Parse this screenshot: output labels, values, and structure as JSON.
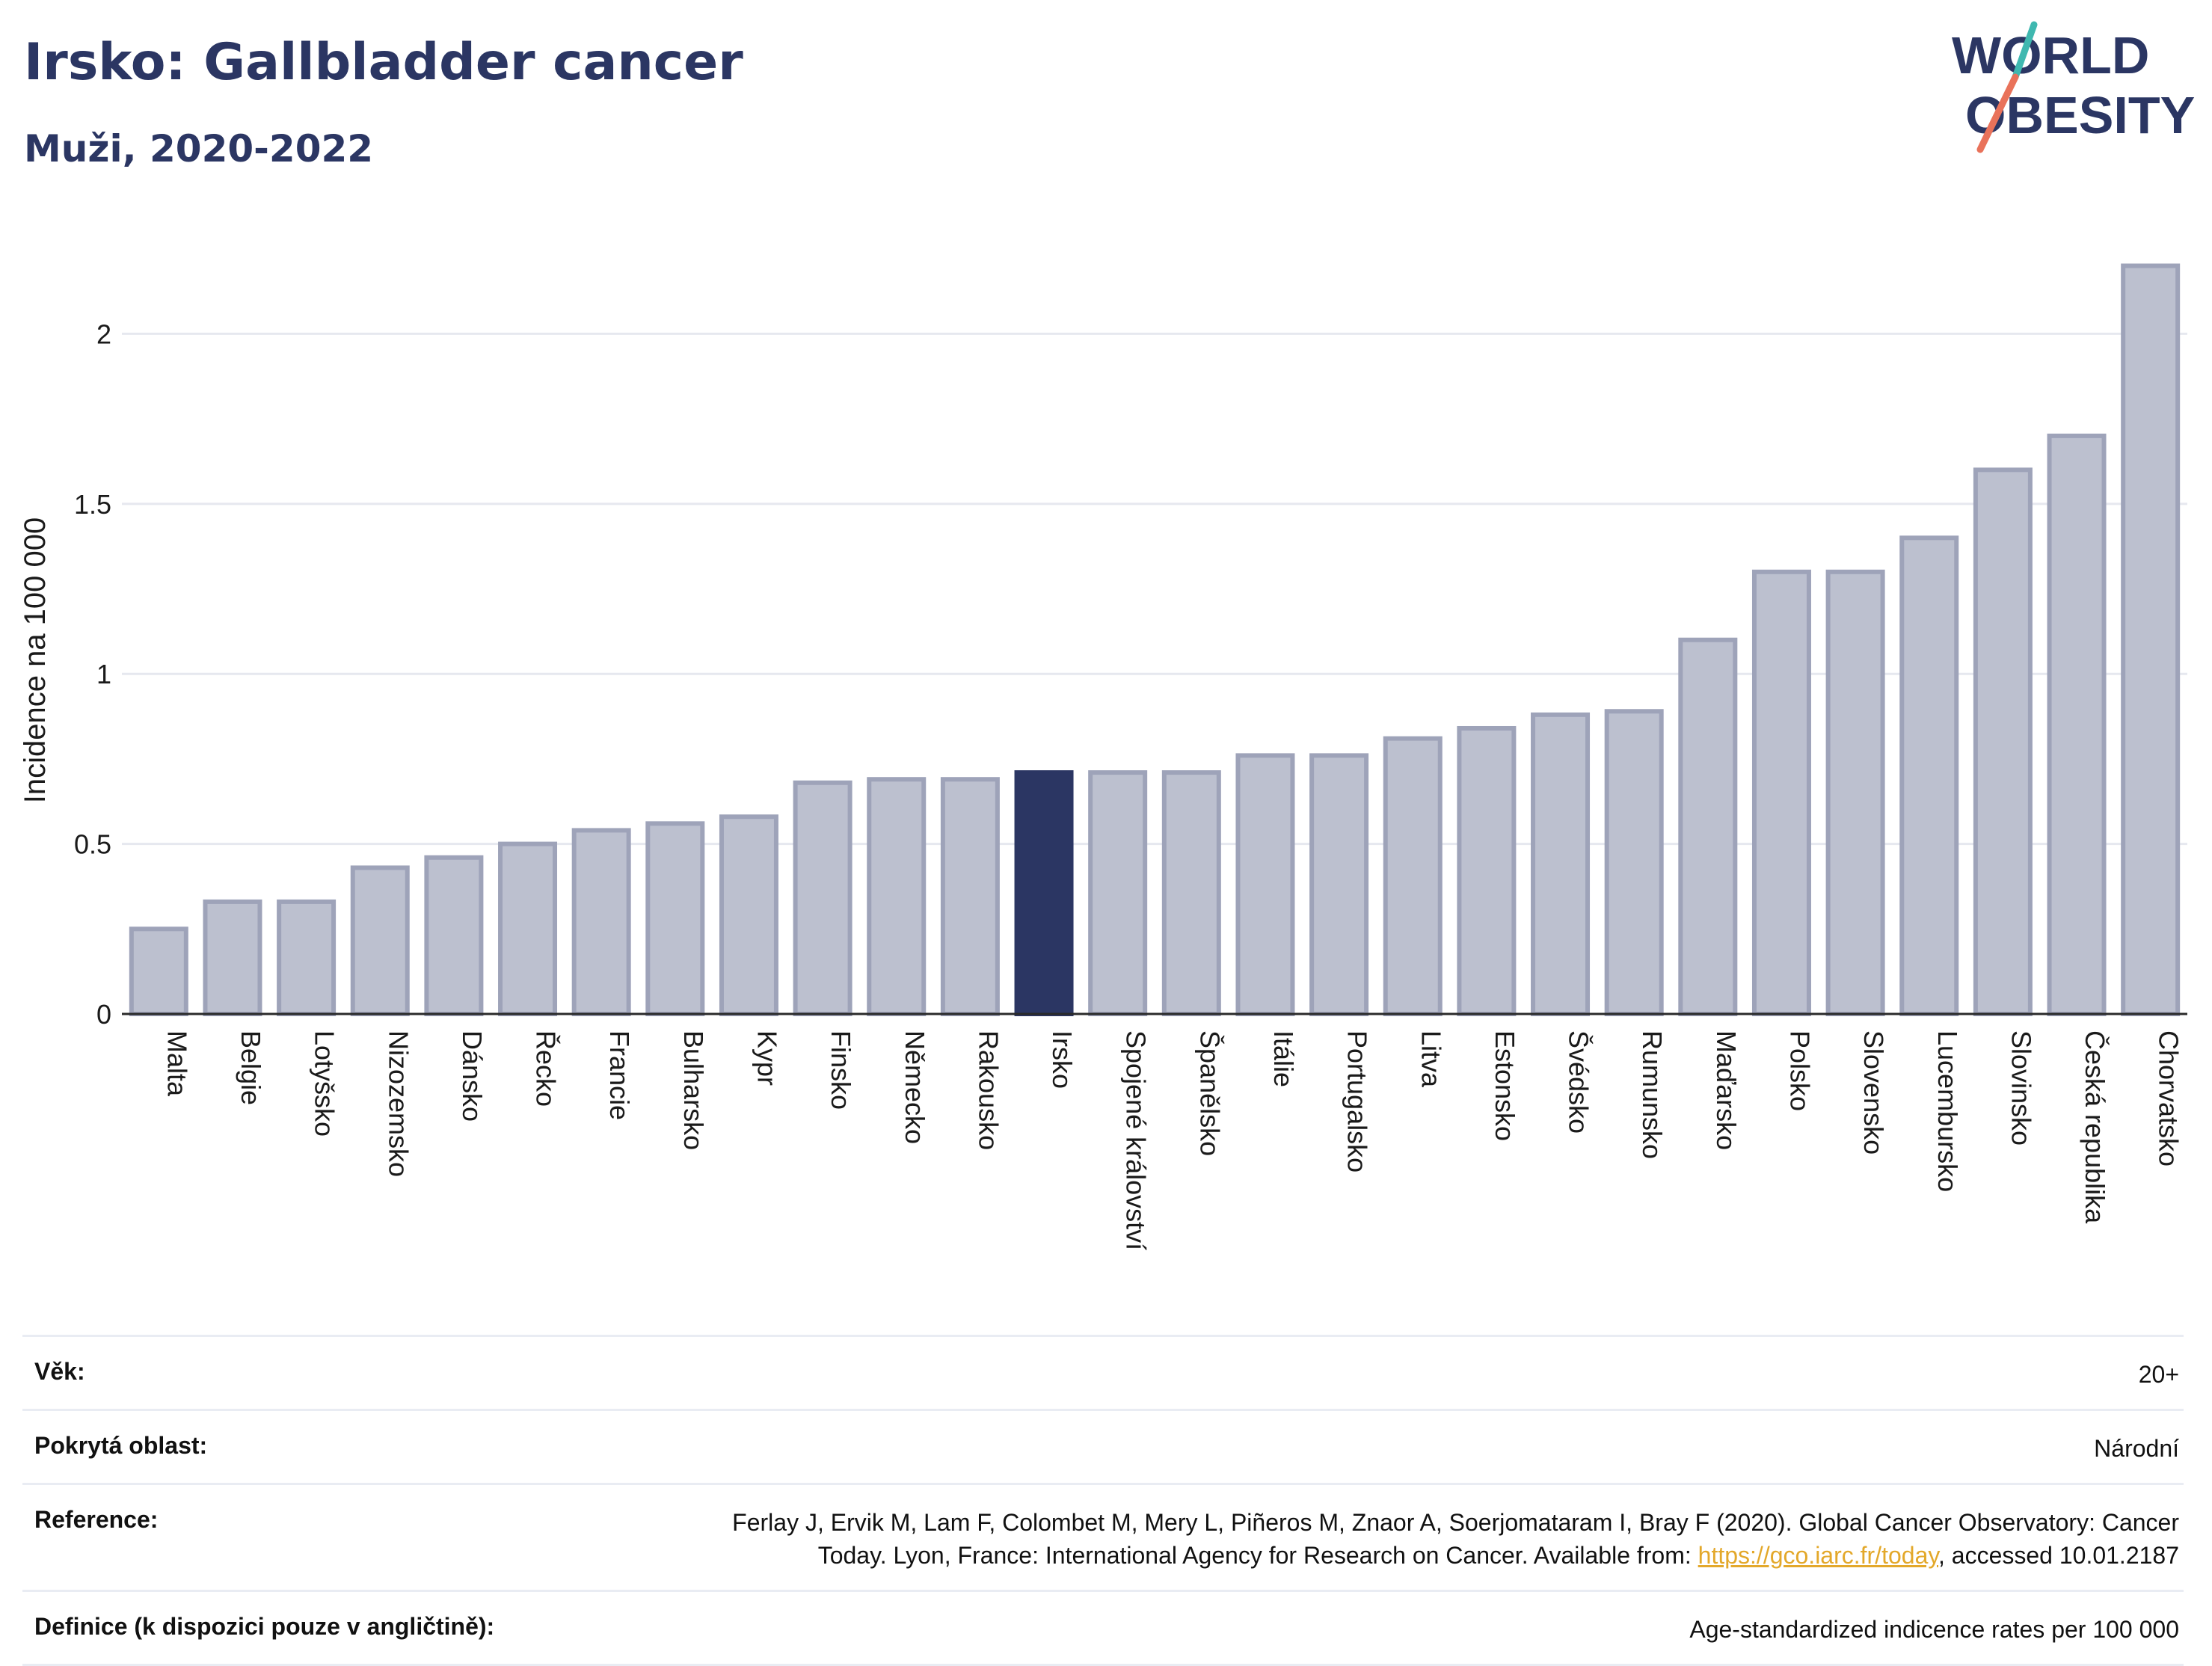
{
  "header": {
    "title": "Irsko: Gallbladder cancer",
    "subtitle": "Muži, 2020-2022"
  },
  "logo": {
    "line1": "WORLD",
    "line2": "OBESITY"
  },
  "chart_data": {
    "type": "bar",
    "ylabel": "Incidence na 100 000",
    "ylim": [
      0,
      2.3
    ],
    "yticks": [
      0,
      0.5,
      1,
      1.5,
      2
    ],
    "ytick_labels": [
      "0",
      "0.5",
      "1",
      "1.5",
      "2"
    ],
    "grid": true,
    "highlight": "Irsko",
    "colors": {
      "default": "#bcc0cf",
      "default_edge": "#9ea3b9",
      "highlight": "#2b3663"
    },
    "categories": [
      "Malta",
      "Belgie",
      "Lotyšsko",
      "Nizozemsko",
      "Dánsko",
      "Řecko",
      "Francie",
      "Bulharsko",
      "Kypr",
      "Finsko",
      "Německo",
      "Rakousko",
      "Irsko",
      "Spojené království",
      "Španělsko",
      "Itálie",
      "Portugalsko",
      "Litva",
      "Estonsko",
      "Švédsko",
      "Rumunsko",
      "Maďarsko",
      "Polsko",
      "Slovensko",
      "Lucembursko",
      "Slovinsko",
      "Česká republika",
      "Chorvatsko"
    ],
    "values": [
      0.25,
      0.33,
      0.33,
      0.43,
      0.46,
      0.5,
      0.54,
      0.56,
      0.58,
      0.68,
      0.69,
      0.69,
      0.71,
      0.71,
      0.71,
      0.76,
      0.76,
      0.81,
      0.84,
      0.88,
      0.89,
      1.1,
      1.3,
      1.3,
      1.4,
      1.6,
      1.7,
      2.2
    ]
  },
  "meta": {
    "age_label": "Věk:",
    "age_value": "20+",
    "area_label": "Pokrytá oblast:",
    "area_value": "Národní",
    "ref_label": "Reference:",
    "ref_text_1": "Ferlay J, Ervik M, Lam F, Colombet M, Mery L, Piñeros M, Znaor A, Soerjomataram I, Bray F (2020). Global Cancer Observatory: Cancer",
    "ref_text_2": "Today. Lyon, France: International Agency for Research on Cancer. Available from: ",
    "ref_link": "https://gco.iarc.fr/today",
    "ref_text_3": ", accessed 10.01.2187",
    "def_label": "Definice (k dispozici pouze v angličtině):",
    "def_value": "Age-standardized indicence rates per 100 000"
  }
}
